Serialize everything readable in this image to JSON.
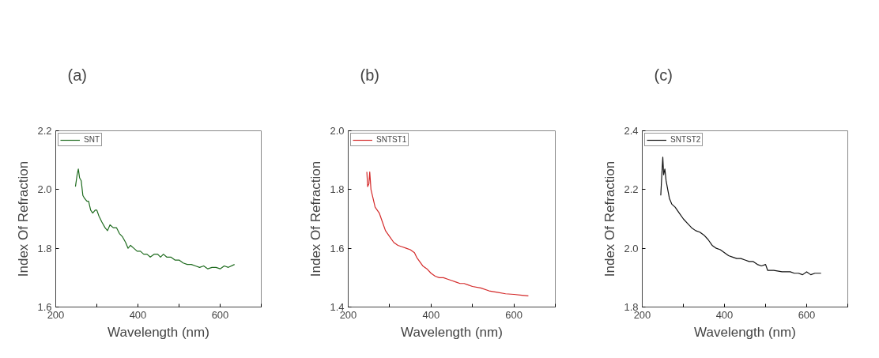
{
  "chart_data": [
    {
      "type": "line",
      "title": "(a)",
      "xlabel": "Wavelength (nm)",
      "ylabel": "Index Of Refraction",
      "xlim": [
        200,
        700
      ],
      "ylim": [
        1.6,
        2.2
      ],
      "xticks": [
        200,
        {
          "value": 300,
          "label": null
        },
        400,
        {
          "value": 500,
          "label": null
        },
        600,
        {
          "value": 700,
          "label": null
        }
      ],
      "yticks": [
        {
          "value": 1.6,
          "label": "1.6"
        },
        {
          "value": 1.8,
          "label": "1.8"
        },
        {
          "value": 2.0,
          "label": "2.0"
        },
        {
          "value": 2.2,
          "label": "2.2"
        }
      ],
      "grid": false,
      "legend": "top left",
      "marker": "none",
      "line_style": "solid",
      "series": [
        {
          "name": "SNT",
          "color": "#1e6b1e",
          "x": [
            248,
            252,
            255,
            258,
            262,
            266,
            270,
            276,
            280,
            285,
            290,
            296,
            300,
            305,
            312,
            320,
            326,
            332,
            340,
            348,
            355,
            362,
            370,
            376,
            382,
            390,
            398,
            406,
            414,
            422,
            430,
            440,
            448,
            455,
            462,
            470,
            480,
            490,
            500,
            510,
            520,
            530,
            540,
            550,
            560,
            570,
            580,
            590,
            600,
            610,
            620,
            635
          ],
          "values": [
            2.01,
            2.05,
            2.07,
            2.04,
            2.03,
            1.98,
            1.97,
            1.96,
            1.96,
            1.93,
            1.92,
            1.93,
            1.93,
            1.91,
            1.89,
            1.87,
            1.86,
            1.88,
            1.87,
            1.87,
            1.85,
            1.84,
            1.82,
            1.8,
            1.81,
            1.8,
            1.79,
            1.79,
            1.78,
            1.78,
            1.77,
            1.78,
            1.78,
            1.77,
            1.78,
            1.77,
            1.77,
            1.76,
            1.76,
            1.75,
            1.745,
            1.745,
            1.74,
            1.735,
            1.74,
            1.73,
            1.735,
            1.735,
            1.73,
            1.74,
            1.735,
            1.745
          ]
        }
      ]
    },
    {
      "type": "line",
      "title": "(b)",
      "xlabel": "Wavelength (nm)",
      "ylabel": "Index Of Refraction",
      "xlim": [
        200,
        700
      ],
      "ylim": [
        1.4,
        2.0
      ],
      "xticks": [
        200,
        {
          "value": 300,
          "label": null
        },
        400,
        {
          "value": 500,
          "label": null
        },
        600,
        {
          "value": 700,
          "label": null
        }
      ],
      "yticks": [
        {
          "value": 1.4,
          "label": "1.4"
        },
        {
          "value": 1.6,
          "label": "1.6"
        },
        {
          "value": 1.8,
          "label": "1.8"
        },
        {
          "value": 2.0,
          "label": "2.0"
        }
      ],
      "grid": false,
      "legend": "top left",
      "marker": "none",
      "line_style": "solid",
      "series": [
        {
          "name": "SNTST1",
          "color": "#d42a2a",
          "x": [
            245,
            247,
            250,
            252,
            255,
            260,
            265,
            270,
            275,
            280,
            285,
            290,
            295,
            300,
            310,
            320,
            330,
            340,
            350,
            360,
            365,
            370,
            380,
            390,
            400,
            410,
            420,
            430,
            440,
            450,
            460,
            470,
            480,
            490,
            500,
            520,
            540,
            560,
            580,
            600,
            620,
            635
          ],
          "values": [
            1.86,
            1.81,
            1.82,
            1.86,
            1.8,
            1.77,
            1.74,
            1.73,
            1.72,
            1.7,
            1.68,
            1.66,
            1.65,
            1.64,
            1.62,
            1.61,
            1.605,
            1.6,
            1.595,
            1.585,
            1.57,
            1.56,
            1.54,
            1.53,
            1.515,
            1.505,
            1.5,
            1.5,
            1.495,
            1.49,
            1.485,
            1.48,
            1.48,
            1.475,
            1.47,
            1.465,
            1.455,
            1.45,
            1.445,
            1.443,
            1.44,
            1.438
          ]
        }
      ]
    },
    {
      "type": "line",
      "title": "(c)",
      "xlabel": "Wavelength (nm)",
      "ylabel": "Index Of Refraction",
      "xlim": [
        200,
        700
      ],
      "ylim": [
        1.8,
        2.4
      ],
      "xticks": [
        200,
        {
          "value": 300,
          "label": null
        },
        400,
        {
          "value": 500,
          "label": null
        },
        600,
        {
          "value": 700,
          "label": null
        }
      ],
      "yticks": [
        {
          "value": 1.8,
          "label": "1.8"
        },
        {
          "value": 2.0,
          "label": "2.0"
        },
        {
          "value": 2.2,
          "label": "2.2"
        },
        {
          "value": 2.4,
          "label": "2.4"
        }
      ],
      "grid": false,
      "legend": "top left",
      "marker": "none",
      "line_style": "solid",
      "series": [
        {
          "name": "SNTST2",
          "color": "#111111",
          "x": [
            245,
            248,
            250,
            252,
            255,
            258,
            262,
            266,
            272,
            280,
            290,
            300,
            310,
            320,
            330,
            340,
            350,
            360,
            370,
            380,
            390,
            400,
            410,
            420,
            430,
            440,
            450,
            460,
            470,
            480,
            490,
            500,
            505,
            520,
            540,
            560,
            570,
            580,
            590,
            600,
            610,
            620,
            635
          ],
          "values": [
            2.18,
            2.26,
            2.31,
            2.25,
            2.27,
            2.23,
            2.2,
            2.17,
            2.15,
            2.14,
            2.12,
            2.1,
            2.085,
            2.07,
            2.06,
            2.055,
            2.045,
            2.03,
            2.01,
            2.0,
            1.995,
            1.985,
            1.975,
            1.97,
            1.965,
            1.965,
            1.96,
            1.955,
            1.955,
            1.945,
            1.94,
            1.945,
            1.925,
            1.925,
            1.92,
            1.92,
            1.915,
            1.915,
            1.91,
            1.92,
            1.91,
            1.915,
            1.915
          ]
        }
      ]
    }
  ]
}
